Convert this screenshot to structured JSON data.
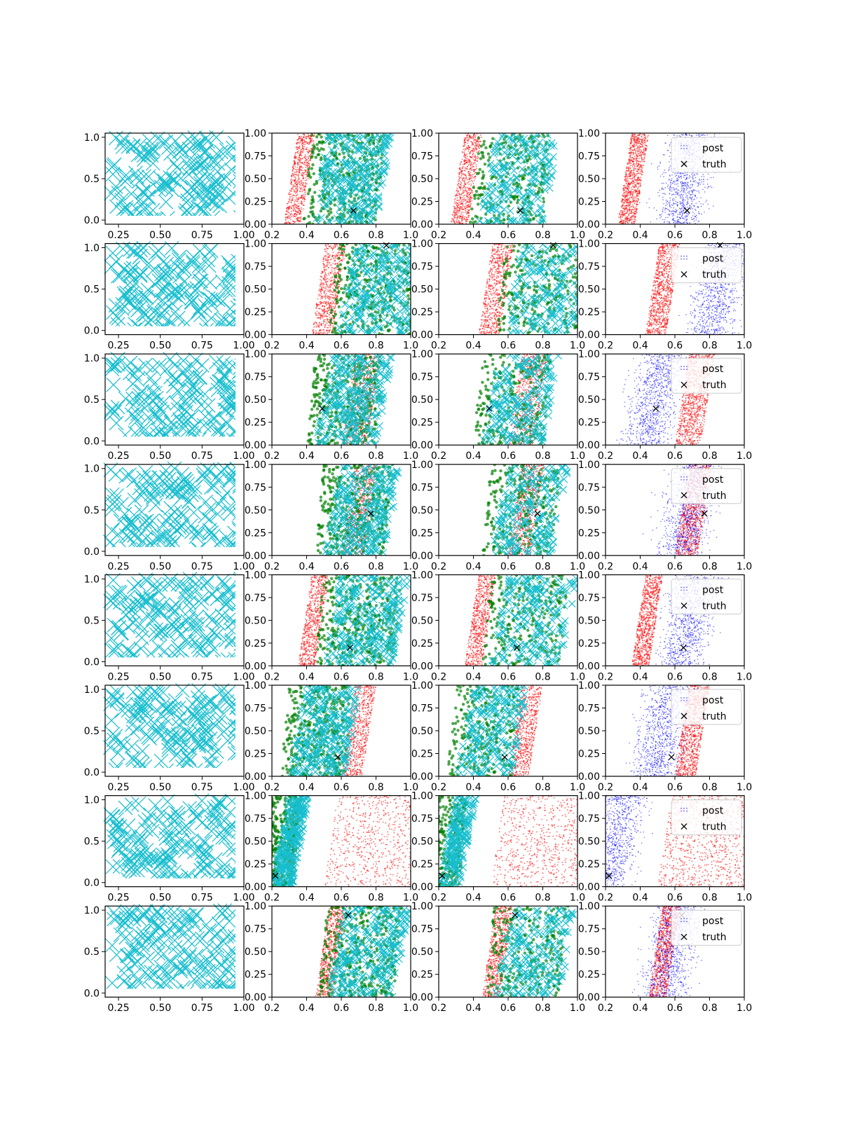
{
  "figure": {
    "rows": 8,
    "cols": 4
  },
  "colors": {
    "samples": "#17becf",
    "posterior_a": "#ff0000",
    "posterior_b": "#008000",
    "posterior_c": "#0000ff",
    "truth": "#000000"
  },
  "axes": {
    "col0": {
      "xlim": [
        0.17,
        1.0
      ],
      "ylim": [
        -0.05,
        1.05
      ],
      "xticks": [
        "0.25",
        "0.50",
        "0.75",
        "1.00"
      ],
      "xtick_values": [
        0.25,
        0.5,
        0.75,
        1.0
      ],
      "yticks": [
        "0.0",
        "0.5",
        "1.0"
      ],
      "ytick_values": [
        0.0,
        0.5,
        1.0
      ]
    },
    "col_other": {
      "xlim": [
        0.2,
        1.0
      ],
      "ylim": [
        0.0,
        1.0
      ],
      "xticks": [
        "0.2",
        "0.4",
        "0.6",
        "0.8",
        "1.0"
      ],
      "xtick_values": [
        0.2,
        0.4,
        0.6,
        0.8,
        1.0
      ],
      "yticks": [
        "0.00",
        "0.25",
        "0.50",
        "0.75",
        "1.00"
      ],
      "ytick_values": [
        0.0,
        0.25,
        0.5,
        0.75,
        1.0
      ]
    }
  },
  "legend": {
    "post_label": "post",
    "truth_label": "truth",
    "placement": "upper-right"
  },
  "chart_data": [
    {
      "row": 0,
      "type": "scatter",
      "truth": [
        0.67,
        0.15
      ],
      "red_band": [
        0.27,
        0.37
      ],
      "green_band": [
        0.43,
        0.8
      ],
      "blue_center": [
        0.66,
        0.35
      ],
      "legend": true
    },
    {
      "row": 1,
      "type": "scatter",
      "truth": [
        0.86,
        0.98
      ],
      "red_band": [
        0.43,
        0.55
      ],
      "green_band": [
        0.58,
        1.0
      ],
      "blue_center": [
        0.85,
        0.4
      ],
      "legend": true
    },
    {
      "row": 2,
      "type": "scatter",
      "truth": [
        0.49,
        0.4
      ],
      "red_band": [
        0.6,
        0.75
      ],
      "green_band": [
        0.45,
        0.8
      ],
      "blue_center": [
        0.48,
        0.6
      ],
      "legend": true
    },
    {
      "row": 3,
      "type": "scatter",
      "truth": [
        0.77,
        0.46
      ],
      "red_band": [
        0.6,
        0.73
      ],
      "green_band": [
        0.5,
        0.85
      ],
      "blue_center": [
        0.68,
        0.5
      ],
      "legend": true
    },
    {
      "row": 4,
      "type": "scatter",
      "truth": [
        0.65,
        0.2
      ],
      "red_band": [
        0.35,
        0.45
      ],
      "green_band": [
        0.5,
        0.9
      ],
      "blue_center": [
        0.68,
        0.35
      ],
      "legend": true
    },
    {
      "row": 5,
      "type": "scatter",
      "truth": [
        0.58,
        0.21
      ],
      "red_band": [
        0.6,
        0.72
      ],
      "green_band": [
        0.3,
        0.62
      ],
      "blue_center": [
        0.53,
        0.5
      ],
      "legend": true
    },
    {
      "row": 6,
      "type": "scatter",
      "truth": [
        0.22,
        0.12
      ],
      "red_band": [
        0.5,
        1.0
      ],
      "green_band": [
        0.2,
        0.32
      ],
      "blue_center": [
        0.25,
        0.5
      ],
      "legend": true
    },
    {
      "row": 7,
      "type": "scatter",
      "truth": [
        0.64,
        0.9
      ],
      "red_band": [
        0.45,
        0.55
      ],
      "green_band": [
        0.52,
        0.9
      ],
      "blue_center": [
        0.58,
        0.45
      ],
      "legend": true
    }
  ]
}
